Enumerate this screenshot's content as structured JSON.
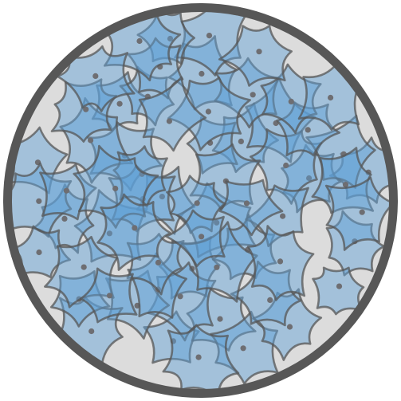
{
  "figure": {
    "subject": "confluent-cell-culture",
    "dish": {
      "fill_color": "#dcdcdc",
      "rim_color": "#575757"
    },
    "cells": {
      "count": 64,
      "fill_color": "#5da0d6",
      "fill_opacity": 0.45,
      "outline_color": "#555555",
      "nucleus_color": "#6e6e72"
    }
  }
}
